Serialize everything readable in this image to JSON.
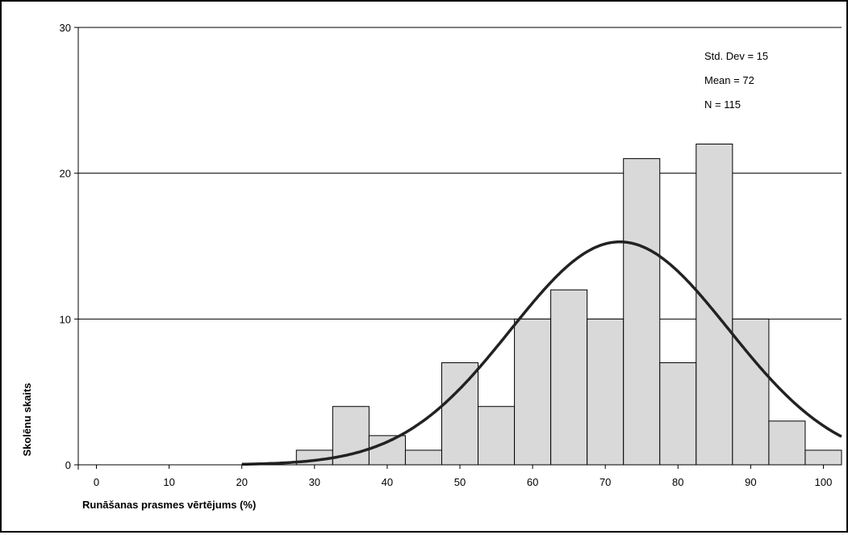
{
  "chart_data": {
    "type": "bar",
    "title": "",
    "xlabel": "Runāšanas prasmes vērtējums (%)",
    "ylabel": "Skolēnu skaits",
    "xlim": [
      -2.5,
      102.5
    ],
    "ylim": [
      0,
      30
    ],
    "x_ticks": [
      0,
      10,
      20,
      30,
      40,
      50,
      60,
      70,
      80,
      90,
      100
    ],
    "y_ticks": [
      0,
      10,
      20,
      30
    ],
    "grid": "horizontal",
    "bin_width": 5,
    "bin_centers": [
      30,
      35,
      40,
      45,
      50,
      55,
      60,
      65,
      70,
      75,
      80,
      85,
      90,
      95,
      100
    ],
    "values": [
      1,
      4,
      2,
      1,
      7,
      4,
      10,
      12,
      10,
      21,
      7,
      22,
      10,
      3,
      1
    ],
    "bar_color": "#d9d9d9",
    "curve": {
      "type": "normal",
      "mean": 72,
      "std": 15,
      "n": 115,
      "x_start": 20,
      "color": "#222222"
    },
    "stats": [
      "Std. Dev = 15",
      "Mean = 72",
      "N = 115"
    ]
  }
}
